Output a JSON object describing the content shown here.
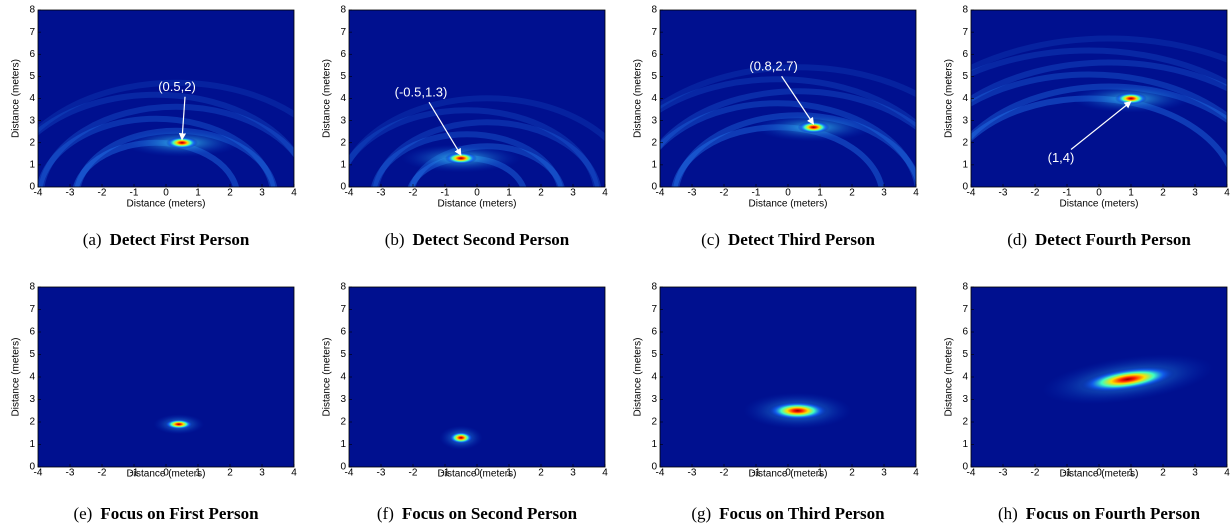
{
  "chart_data": [
    {
      "type": "heatmap",
      "tag": "(a)",
      "caption": "Detect First Person",
      "xlabel": "Distance (meters)",
      "ylabel": "Distance (meters)",
      "xlim": [
        -4,
        4
      ],
      "ylim": [
        0,
        8
      ],
      "xticks": [
        -4,
        -3,
        -2,
        -1,
        0,
        1,
        2,
        3,
        4
      ],
      "yticks": [
        0,
        1,
        2,
        3,
        4,
        5,
        6,
        7,
        8
      ],
      "peak": {
        "x": 0.5,
        "y": 2
      },
      "annotation": "(0.5,2)"
    },
    {
      "type": "heatmap",
      "tag": "(b)",
      "caption": "Detect Second Person",
      "xlabel": "Distance (meters)",
      "ylabel": "Distance (meters)",
      "xlim": [
        -4,
        4
      ],
      "ylim": [
        0,
        8
      ],
      "xticks": [
        -4,
        -3,
        -2,
        -1,
        0,
        1,
        2,
        3,
        4
      ],
      "yticks": [
        0,
        1,
        2,
        3,
        4,
        5,
        6,
        7,
        8
      ],
      "peak": {
        "x": -0.5,
        "y": 1.3
      },
      "annotation": "(-0.5,1.3)"
    },
    {
      "type": "heatmap",
      "tag": "(c)",
      "caption": "Detect Third Person",
      "xlabel": "Distance (meters)",
      "ylabel": "Distance (meters)",
      "xlim": [
        -4,
        4
      ],
      "ylim": [
        0,
        8
      ],
      "xticks": [
        -4,
        -3,
        -2,
        -1,
        0,
        1,
        2,
        3,
        4
      ],
      "yticks": [
        0,
        1,
        2,
        3,
        4,
        5,
        6,
        7,
        8
      ],
      "peak": {
        "x": 0.8,
        "y": 2.7
      },
      "annotation": "(0.8,2.7)"
    },
    {
      "type": "heatmap",
      "tag": "(d)",
      "caption": "Detect Fourth Person",
      "xlabel": "Distance (meters)",
      "ylabel": "Distance (meters)",
      "xlim": [
        -4,
        4
      ],
      "ylim": [
        0,
        8
      ],
      "xticks": [
        -4,
        -3,
        -2,
        -1,
        0,
        1,
        2,
        3,
        4
      ],
      "yticks": [
        0,
        1,
        2,
        3,
        4,
        5,
        6,
        7,
        8
      ],
      "peak": {
        "x": 1,
        "y": 4
      },
      "annotation": "(1,4)"
    },
    {
      "type": "heatmap",
      "tag": "(e)",
      "caption": "Focus on First Person",
      "xlabel": "Distance (meters)",
      "ylabel": "Distance (meters)",
      "xlim": [
        -4,
        4
      ],
      "ylim": [
        0,
        8
      ],
      "xticks": [
        -4,
        -3,
        -2,
        -1,
        0,
        1,
        2,
        3,
        4
      ],
      "yticks": [
        0,
        1,
        2,
        3,
        4,
        5,
        6,
        7,
        8
      ],
      "peak": {
        "x": 0.4,
        "y": 1.9
      }
    },
    {
      "type": "heatmap",
      "tag": "(f)",
      "caption": "Focus on Second Person",
      "xlabel": "Distance (meters)",
      "ylabel": "Distance (meters)",
      "xlim": [
        -4,
        4
      ],
      "ylim": [
        0,
        8
      ],
      "xticks": [
        -4,
        -3,
        -2,
        -1,
        0,
        1,
        2,
        3,
        4
      ],
      "yticks": [
        0,
        1,
        2,
        3,
        4,
        5,
        6,
        7,
        8
      ],
      "peak": {
        "x": -0.5,
        "y": 1.3
      }
    },
    {
      "type": "heatmap",
      "tag": "(g)",
      "caption": "Focus on Third Person",
      "xlabel": "Distance (meters)",
      "ylabel": "Distance (meters)",
      "xlim": [
        -4,
        4
      ],
      "ylim": [
        0,
        8
      ],
      "xticks": [
        -4,
        -3,
        -2,
        -1,
        0,
        1,
        2,
        3,
        4
      ],
      "yticks": [
        0,
        1,
        2,
        3,
        4,
        5,
        6,
        7,
        8
      ],
      "peak": {
        "x": 0.3,
        "y": 2.5
      }
    },
    {
      "type": "heatmap",
      "tag": "(h)",
      "caption": "Focus on Fourth Person",
      "xlabel": "Distance (meters)",
      "ylabel": "Distance (meters)",
      "xlim": [
        -4,
        4
      ],
      "ylim": [
        0,
        8
      ],
      "xticks": [
        -4,
        -3,
        -2,
        -1,
        0,
        1,
        2,
        3,
        4
      ],
      "yticks": [
        0,
        1,
        2,
        3,
        4,
        5,
        6,
        7,
        8
      ],
      "peak": {
        "x": 0.9,
        "y": 3.9
      }
    }
  ]
}
